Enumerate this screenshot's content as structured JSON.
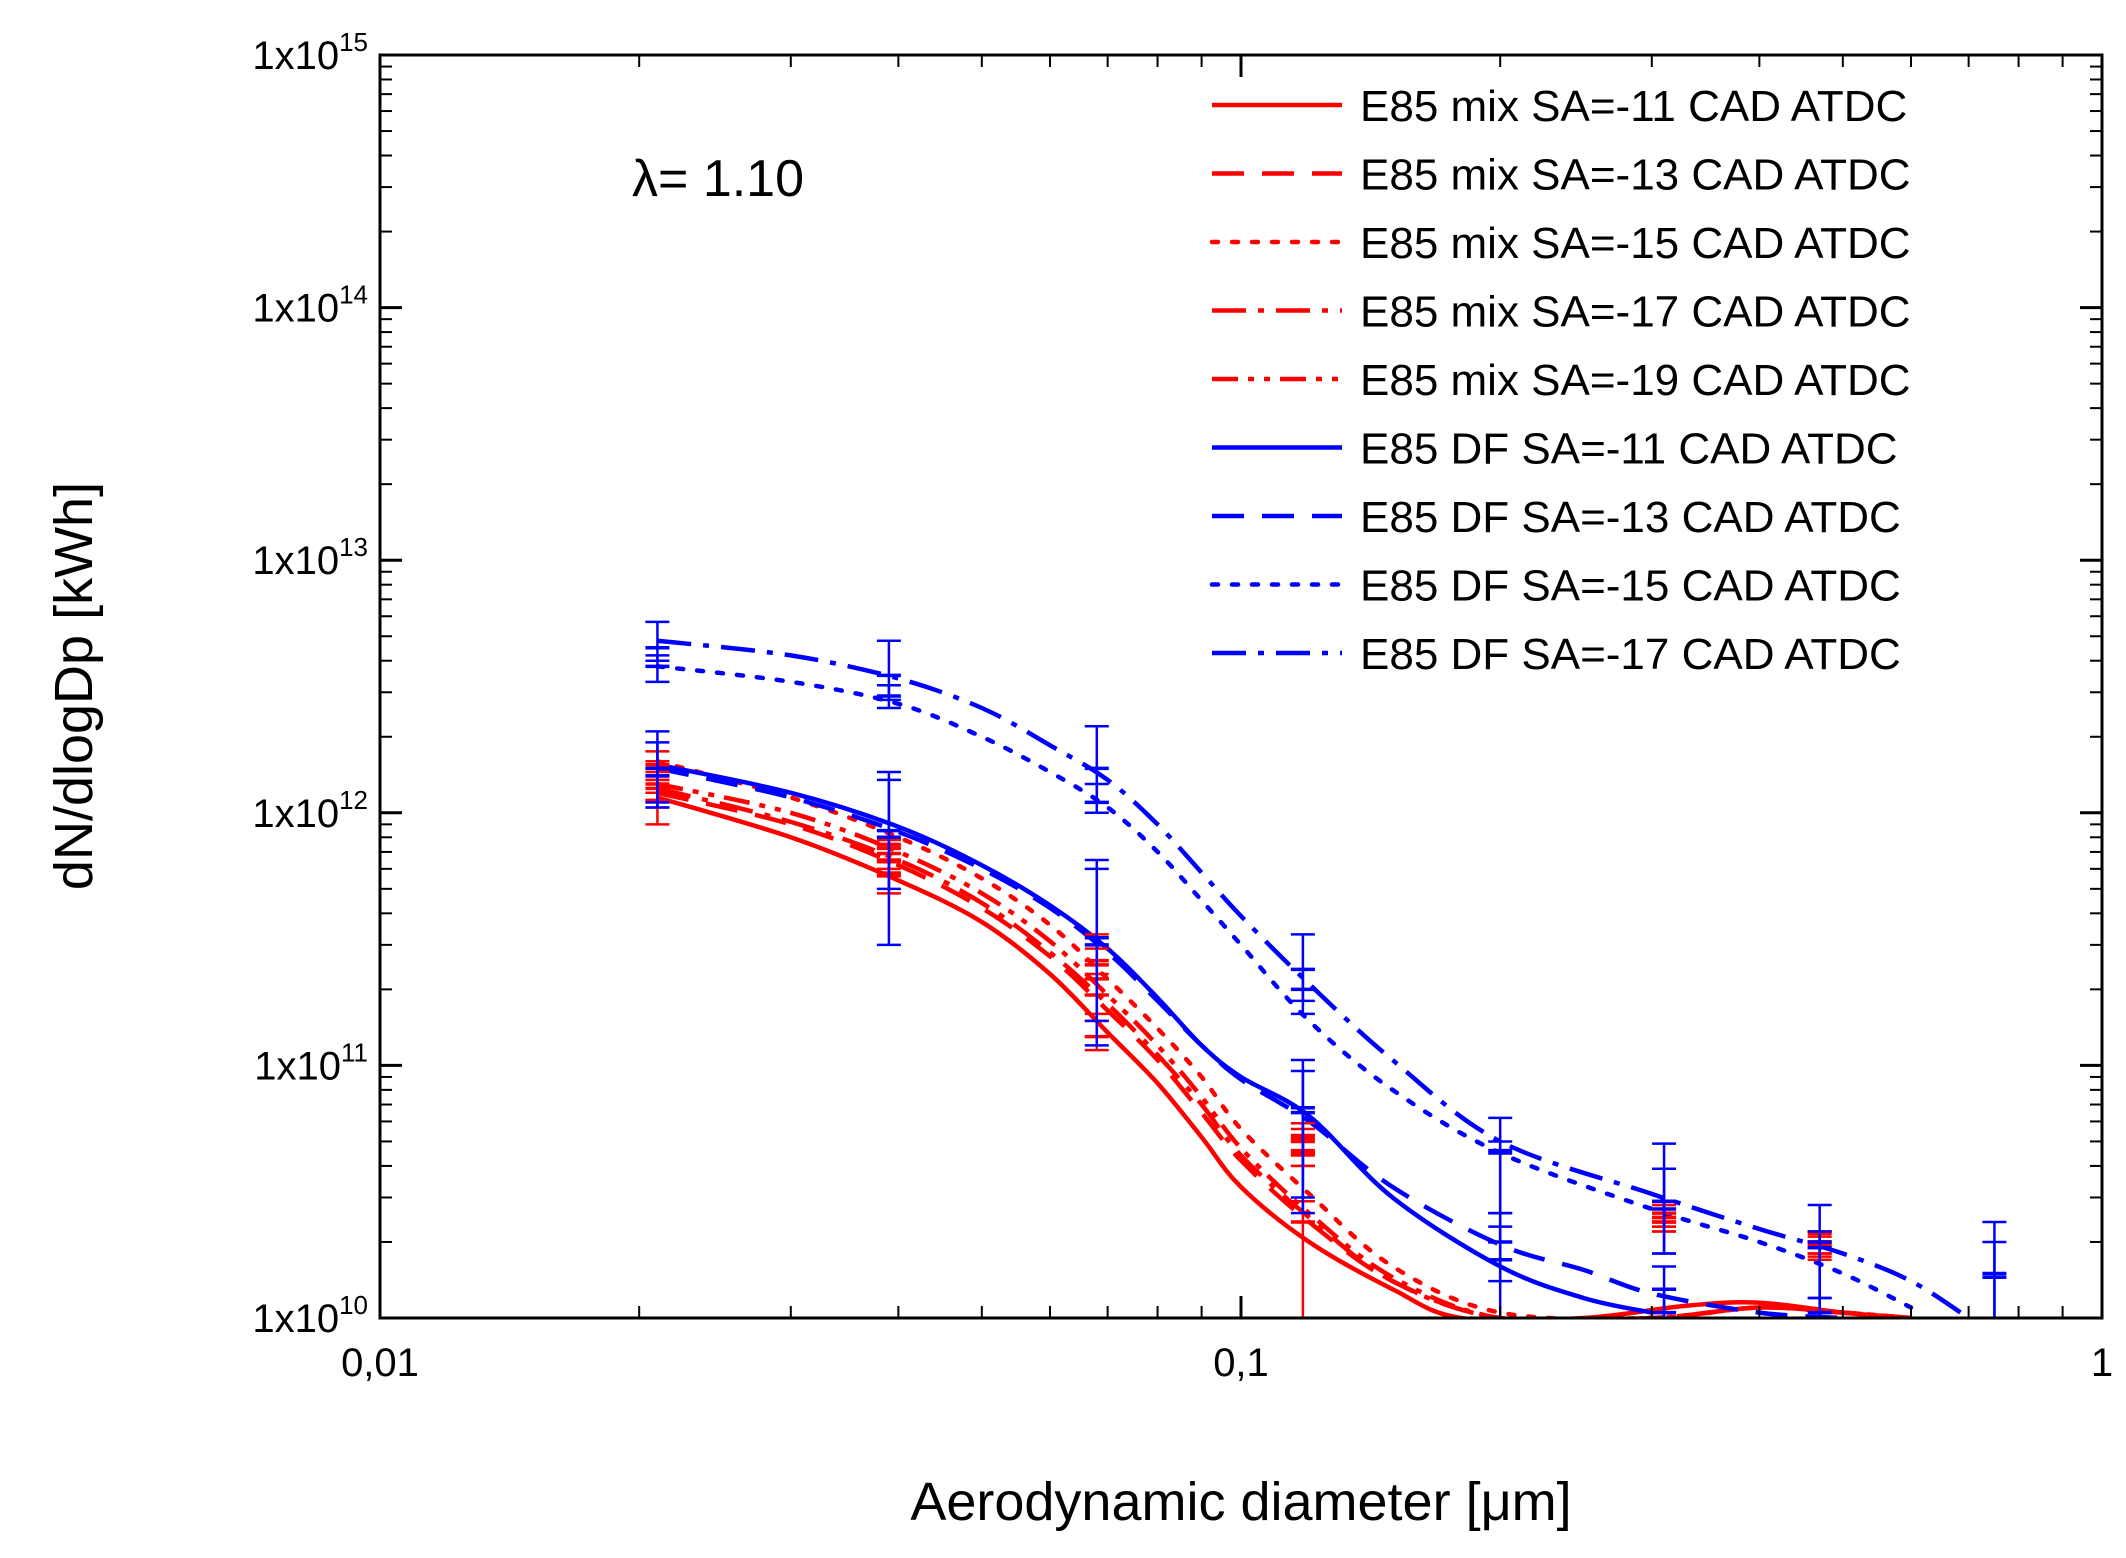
{
  "chart_data": {
    "type": "line",
    "title": "",
    "xlabel": "Aerodynamic diameter [μm]",
    "ylabel": "dN/dlogDp [kWh]",
    "xscale": "log",
    "yscale": "log",
    "xlim": [
      0.01,
      1
    ],
    "ylim": [
      10000000000.0,
      1000000000000000.0
    ],
    "x_ticks": [
      {
        "value": 0.01,
        "label": "0,01"
      },
      {
        "value": 0.1,
        "label": "0,1"
      },
      {
        "value": 1,
        "label": "1"
      }
    ],
    "y_ticks": [
      {
        "value": 10000000000.0,
        "base": "1x10",
        "exp": "10"
      },
      {
        "value": 100000000000.0,
        "base": "1x10",
        "exp": "11"
      },
      {
        "value": 1000000000000.0,
        "base": "1x10",
        "exp": "12"
      },
      {
        "value": 10000000000000.0,
        "base": "1x10",
        "exp": "13"
      },
      {
        "value": 100000000000000.0,
        "base": "1x10",
        "exp": "14"
      },
      {
        "value": 1000000000000000.0,
        "base": "1x10",
        "exp": "15"
      }
    ],
    "annotation": "λ= 1.10",
    "legend_position": "top-right",
    "series": [
      {
        "name": "E85 mix SA=-11 CAD ATDC",
        "color": "#ff0000",
        "dash": "solid",
        "x": [
          0.021,
          0.03,
          0.04,
          0.05,
          0.06,
          0.07,
          0.08,
          0.09,
          0.1,
          0.12,
          0.15,
          0.18,
          0.25,
          0.33,
          0.4,
          0.5,
          0.6
        ],
        "y": [
          1150000000000.0,
          800000000000.0,
          540000000000.0,
          370000000000.0,
          230000000000.0,
          135000000000.0,
          85000000000.0,
          52000000000.0,
          33000000000.0,
          20000000000.0,
          13000000000.0,
          10000000000.0,
          10000000000.0,
          11200000000.0,
          11500000000.0,
          10500000000.0,
          10000000000.0
        ],
        "points_x": [
          0.021,
          0.039,
          0.068,
          0.118,
          0.31,
          0.47
        ],
        "points_y": [
          1120000000000.0,
          570000000000.0,
          130000000000.0,
          24000000000.0,
          24000000000.0,
          19000000000.0
        ],
        "err_low": [
          900000000000.0,
          480000000000.0,
          115000000000.0,
          10000000000.0,
          22000000000.0,
          17000000000.0
        ],
        "err_high": [
          1350000000000.0,
          650000000000.0,
          150000000000.0,
          29000000000.0,
          26000000000.0,
          21000000000.0
        ]
      },
      {
        "name": "E85 mix SA=-13 CAD ATDC",
        "color": "#ff0000",
        "dash": "dash",
        "x": [
          0.021,
          0.03,
          0.04,
          0.05,
          0.06,
          0.07,
          0.08,
          0.09,
          0.1,
          0.12,
          0.15,
          0.2,
          0.3,
          0.4,
          0.5,
          0.6
        ],
        "y": [
          1200000000000.0,
          900000000000.0,
          620000000000.0,
          420000000000.0,
          270000000000.0,
          165000000000.0,
          105000000000.0,
          65000000000.0,
          42000000000.0,
          24000000000.0,
          14000000000.0,
          10000000000.0,
          10000000000.0,
          11000000000.0,
          10500000000.0,
          10000000000.0
        ],
        "points_x": [
          0.021,
          0.039,
          0.068,
          0.118,
          0.31,
          0.47
        ],
        "points_y": [
          1250000000000.0,
          640000000000.0,
          190000000000.0,
          46000000000.0,
          25000000000.0,
          20000000000.0
        ],
        "err_low": [
          1050000000000.0,
          560000000000.0,
          160000000000.0,
          40000000000.0,
          23000000000.0,
          18000000000.0
        ],
        "err_high": [
          1450000000000.0,
          720000000000.0,
          220000000000.0,
          53000000000.0,
          28000000000.0,
          22000000000.0
        ]
      },
      {
        "name": "E85 mix SA=-15 CAD ATDC",
        "color": "#ff0000",
        "dash": "dot",
        "x": [
          0.021,
          0.03,
          0.04,
          0.05,
          0.06,
          0.07,
          0.08,
          0.09,
          0.1,
          0.12,
          0.15,
          0.2,
          0.3,
          0.4,
          0.5,
          0.6
        ],
        "y": [
          1600000000000.0,
          1150000000000.0,
          800000000000.0,
          550000000000.0,
          360000000000.0,
          220000000000.0,
          140000000000.0,
          90000000000.0,
          56000000000.0,
          31000000000.0,
          16000000000.0,
          10500000000.0,
          10000000000.0,
          11000000000.0,
          10500000000.0,
          10000000000.0
        ],
        "points_x": [
          0.021,
          0.039,
          0.068,
          0.118,
          0.31,
          0.47
        ],
        "points_y": [
          1550000000000.0,
          750000000000.0,
          260000000000.0,
          50000000000.0,
          26000000000.0,
          20000000000.0
        ],
        "err_low": [
          1350000000000.0,
          650000000000.0,
          230000000000.0,
          44000000000.0,
          24000000000.0,
          18000000000.0
        ],
        "err_high": [
          1750000000000.0,
          850000000000.0,
          290000000000.0,
          56000000000.0,
          29000000000.0,
          22000000000.0
        ]
      },
      {
        "name": "E85 mix SA=-17 CAD ATDC",
        "color": "#ff0000",
        "dash": "dashdot",
        "x": [
          0.021,
          0.03,
          0.04,
          0.05,
          0.06,
          0.07,
          0.08,
          0.09,
          0.1,
          0.12,
          0.15,
          0.2,
          0.3,
          0.4,
          0.5,
          0.6
        ],
        "y": [
          1250000000000.0,
          920000000000.0,
          650000000000.0,
          440000000000.0,
          280000000000.0,
          175000000000.0,
          110000000000.0,
          70000000000.0,
          44000000000.0,
          25000000000.0,
          14000000000.0,
          10000000000.0,
          10000000000.0,
          11000000000.0,
          10500000000.0,
          10000000000.0
        ],
        "points_x": [
          0.021,
          0.039,
          0.068,
          0.118,
          0.31,
          0.47
        ],
        "points_y": [
          1300000000000.0,
          650000000000.0,
          220000000000.0,
          45000000000.0,
          24000000000.0,
          19500000000.0
        ],
        "err_low": [
          1100000000000.0,
          580000000000.0,
          190000000000.0,
          40000000000.0,
          22000000000.0,
          17500000000.0
        ],
        "err_high": [
          1500000000000.0,
          730000000000.0,
          250000000000.0,
          51000000000.0,
          27000000000.0,
          21500000000.0
        ]
      },
      {
        "name": "E85 mix SA=-19 CAD ATDC",
        "color": "#ff0000",
        "dash": "dashdotdot",
        "x": [
          0.021,
          0.03,
          0.04,
          0.05,
          0.06,
          0.07,
          0.08,
          0.09,
          0.1,
          0.12,
          0.15,
          0.2,
          0.3,
          0.4,
          0.5,
          0.6
        ],
        "y": [
          1300000000000.0,
          1000000000000.0,
          700000000000.0,
          480000000000.0,
          310000000000.0,
          190000000000.0,
          120000000000.0,
          75000000000.0,
          47000000000.0,
          26000000000.0,
          14500000000.0,
          10000000000.0,
          10000000000.0,
          11000000000.0,
          10500000000.0,
          10000000000.0
        ],
        "points_x": [
          0.021,
          0.039,
          0.068,
          0.118,
          0.31,
          0.47
        ],
        "points_y": [
          1400000000000.0,
          690000000000.0,
          250000000000.0,
          52000000000.0,
          25000000000.0,
          20000000000.0
        ],
        "err_low": [
          1200000000000.0,
          600000000000.0,
          220000000000.0,
          45000000000.0,
          23000000000.0,
          18000000000.0
        ],
        "err_high": [
          1600000000000.0,
          780000000000.0,
          330000000000.0,
          59000000000.0,
          28000000000.0,
          22000000000.0
        ]
      },
      {
        "name": "E85 DF SA=-11 CAD ATDC",
        "color": "#0000ff",
        "dash": "solid",
        "x": [
          0.021,
          0.03,
          0.04,
          0.05,
          0.06,
          0.07,
          0.08,
          0.09,
          0.1,
          0.12,
          0.15,
          0.2,
          0.25,
          0.3
        ],
        "y": [
          1550000000000.0,
          1200000000000.0,
          880000000000.0,
          620000000000.0,
          430000000000.0,
          290000000000.0,
          185000000000.0,
          120000000000.0,
          90000000000.0,
          63000000000.0,
          30000000000.0,
          16000000000.0,
          12000000000.0,
          10500000000.0
        ],
        "points_x": [
          0.021,
          0.039,
          0.068,
          0.118,
          0.2,
          0.31
        ],
        "points_y": [
          1500000000000.0,
          850000000000.0,
          320000000000.0,
          68000000000.0,
          17000000000.0,
          10500000000.0
        ],
        "err_low": [
          1050000000000.0,
          300000000000.0,
          120000000000.0,
          26000000000.0,
          10000000000.0,
          10000000000.0
        ],
        "err_high": [
          2100000000000.0,
          1450000000000.0,
          600000000000.0,
          105000000000.0,
          23000000000.0,
          13000000000.0
        ]
      },
      {
        "name": "E85 DF SA=-13 CAD ATDC",
        "color": "#0000ff",
        "dash": "dash",
        "x": [
          0.021,
          0.03,
          0.04,
          0.05,
          0.06,
          0.07,
          0.08,
          0.09,
          0.1,
          0.12,
          0.15,
          0.2,
          0.25,
          0.3,
          0.4,
          0.5
        ],
        "y": [
          1500000000000.0,
          1150000000000.0,
          840000000000.0,
          600000000000.0,
          420000000000.0,
          280000000000.0,
          180000000000.0,
          120000000000.0,
          88000000000.0,
          60000000000.0,
          33000000000.0,
          19500000000.0,
          15500000000.0,
          12500000000.0,
          10500000000.0,
          10000000000.0
        ],
        "points_x": [
          0.021,
          0.039,
          0.068,
          0.118,
          0.2,
          0.31,
          0.47
        ],
        "points_y": [
          1400000000000.0,
          800000000000.0,
          300000000000.0,
          65000000000.0,
          20000000000.0,
          13000000000.0,
          10500000000.0
        ],
        "err_low": [
          1100000000000.0,
          500000000000.0,
          150000000000.0,
          30000000000.0,
          14000000000.0,
          10000000000.0,
          10000000000.0
        ],
        "err_high": [
          1900000000000.0,
          1350000000000.0,
          650000000000.0,
          95000000000.0,
          26000000000.0,
          16000000000.0,
          12000000000.0
        ]
      },
      {
        "name": "E85 DF SA=-15 CAD ATDC",
        "color": "#0000ff",
        "dash": "dot",
        "x": [
          0.021,
          0.03,
          0.04,
          0.05,
          0.06,
          0.07,
          0.08,
          0.09,
          0.1,
          0.12,
          0.15,
          0.2,
          0.3,
          0.4,
          0.5,
          0.6
        ],
        "y": [
          3800000000000.0,
          3300000000000.0,
          2700000000000.0,
          2000000000000.0,
          1450000000000.0,
          1050000000000.0,
          700000000000.0,
          450000000000.0,
          300000000000.0,
          150000000000.0,
          80000000000.0,
          45000000000.0,
          27000000000.0,
          20000000000.0,
          15000000000.0,
          11000000000.0
        ],
        "points_x": [
          0.021,
          0.039,
          0.068,
          0.118,
          0.2,
          0.31,
          0.47,
          0.75
        ],
        "points_y": [
          3800000000000.0,
          2900000000000.0,
          1100000000000.0,
          200000000000.0,
          45000000000.0,
          27000000000.0,
          19000000000.0,
          14500000000.0
        ],
        "err_low": [
          3300000000000.0,
          2600000000000.0,
          1000000000000.0,
          160000000000.0,
          26000000000.0,
          18000000000.0,
          10000000000.0,
          10000000000.0
        ],
        "err_high": [
          4200000000000.0,
          3200000000000.0,
          1300000000000.0,
          240000000000.0,
          62000000000.0,
          39000000000.0,
          28000000000.0,
          24000000000.0
        ]
      },
      {
        "name": "E85 DF SA=-17 CAD ATDC",
        "color": "#0000ff",
        "dash": "dashdot",
        "x": [
          0.021,
          0.03,
          0.04,
          0.05,
          0.06,
          0.07,
          0.08,
          0.09,
          0.1,
          0.12,
          0.15,
          0.2,
          0.3,
          0.4,
          0.5,
          0.6,
          0.7
        ],
        "y": [
          4800000000000.0,
          4200000000000.0,
          3400000000000.0,
          2600000000000.0,
          1850000000000.0,
          1350000000000.0,
          900000000000.0,
          580000000000.0,
          390000000000.0,
          210000000000.0,
          105000000000.0,
          50000000000.0,
          31000000000.0,
          22500000000.0,
          18000000000.0,
          14000000000.0,
          10000000000.0
        ],
        "points_x": [
          0.021,
          0.039,
          0.068,
          0.118,
          0.2,
          0.31,
          0.47,
          0.75
        ],
        "points_y": [
          4500000000000.0,
          3500000000000.0,
          1500000000000.0,
          240000000000.0,
          46000000000.0,
          29000000000.0,
          20000000000.0,
          15000000000.0
        ],
        "err_low": [
          4000000000000.0,
          2800000000000.0,
          1100000000000.0,
          180000000000.0,
          20000000000.0,
          18000000000.0,
          12000000000.0,
          10000000000.0
        ],
        "err_high": [
          5700000000000.0,
          4800000000000.0,
          2200000000000.0,
          330000000000.0,
          50000000000.0,
          49000000000.0,
          22000000000.0,
          20000000000.0
        ]
      }
    ]
  }
}
